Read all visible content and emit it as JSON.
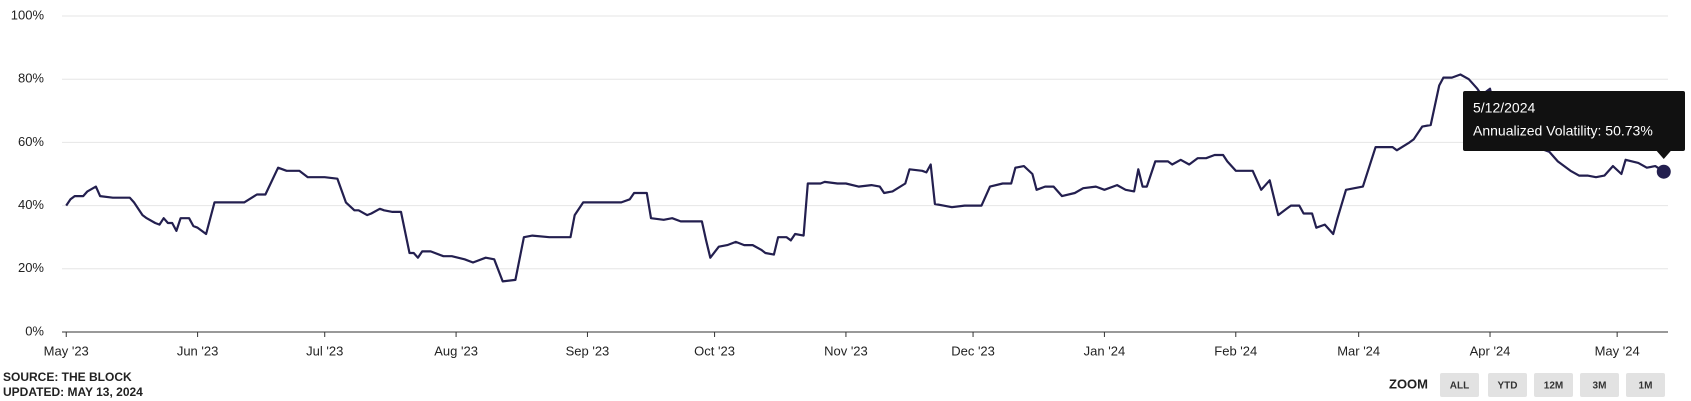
{
  "chart_data": {
    "type": "line",
    "x": [
      "5/1/2023",
      "5/2/2023",
      "5/3/2023",
      "5/5/2023",
      "5/6/2023",
      "5/8/2023",
      "5/9/2023",
      "5/12/2023",
      "5/14/2023",
      "5/16/2023",
      "5/17/2023",
      "5/19/2023",
      "5/20/2023",
      "5/22/2023",
      "5/23/2023",
      "5/24/2023",
      "5/25/2023",
      "5/26/2023",
      "5/27/2023",
      "5/28/2023",
      "5/30/2023",
      "5/31/2023",
      "6/1/2023",
      "6/3/2023",
      "6/5/2023",
      "6/8/2023",
      "6/12/2023",
      "6/15/2023",
      "6/17/2023",
      "6/20/2023",
      "6/22/2023",
      "6/25/2023",
      "6/27/2023",
      "7/1/2023",
      "7/4/2023",
      "7/6/2023",
      "7/8/2023",
      "7/9/2023",
      "7/11/2023",
      "7/12/2023",
      "7/14/2023",
      "7/15/2023",
      "7/17/2023",
      "7/19/2023",
      "7/21/2023",
      "7/22/2023",
      "7/23/2023",
      "7/24/2023",
      "7/26/2023",
      "7/29/2023",
      "7/31/2023",
      "8/3/2023",
      "8/5/2023",
      "8/8/2023",
      "8/10/2023",
      "8/12/2023",
      "8/15/2023",
      "8/17/2023",
      "8/19/2023",
      "8/23/2023",
      "8/28/2023",
      "8/29/2023",
      "8/31/2023",
      "9/5/2023",
      "9/9/2023",
      "9/11/2023",
      "9/12/2023",
      "9/15/2023",
      "9/16/2023",
      "9/19/2023",
      "9/21/2023",
      "9/23/2023",
      "9/26/2023",
      "9/28/2023",
      "9/29/2023",
      "9/30/2023",
      "10/2/2023",
      "10/4/2023",
      "10/6/2023",
      "10/8/2023",
      "10/10/2023",
      "10/12/2023",
      "10/13/2023",
      "10/15/2023",
      "10/16/2023",
      "10/18/2023",
      "10/19/2023",
      "10/20/2023",
      "10/22/2023",
      "10/23/2023",
      "10/26/2023",
      "10/27/2023",
      "10/30/2023",
      "11/1/2023",
      "11/4/2023",
      "11/7/2023",
      "11/9/2023",
      "11/10/2023",
      "11/12/2023",
      "11/15/2023",
      "11/16/2023",
      "11/19/2023",
      "11/20/2023",
      "11/21/2023",
      "11/22/2023",
      "11/24/2023",
      "11/26/2023",
      "11/29/2023",
      "12/1/2023",
      "12/3/2023",
      "12/5/2023",
      "12/8/2023",
      "12/10/2023",
      "12/11/2023",
      "12/13/2023",
      "12/15/2023",
      "12/16/2023",
      "12/18/2023",
      "12/20/2023",
      "12/22/2023",
      "12/25/2023",
      "12/27/2023",
      "12/30/2023",
      "1/1/2024",
      "1/4/2024",
      "1/6/2024",
      "1/8/2024",
      "1/9/2024",
      "1/10/2024",
      "1/11/2024",
      "1/13/2024",
      "1/16/2024",
      "1/17/2024",
      "1/19/2024",
      "1/21/2024",
      "1/23/2024",
      "1/25/2024",
      "1/27/2024",
      "1/29/2024",
      "1/30/2024",
      "2/1/2024",
      "2/5/2024",
      "2/7/2024",
      "2/9/2024",
      "2/11/2024",
      "2/13/2024",
      "2/14/2024",
      "2/16/2024",
      "2/17/2024",
      "2/19/2024",
      "2/20/2024",
      "2/22/2024",
      "2/24/2024",
      "2/25/2024",
      "2/27/2024",
      "2/29/2024",
      "3/2/2024",
      "3/5/2024",
      "3/9/2024",
      "3/10/2024",
      "3/13/2024",
      "3/14/2024",
      "3/16/2024",
      "3/18/2024",
      "3/20/2024",
      "3/21/2024",
      "3/23/2024",
      "3/25/2024",
      "3/27/2024",
      "3/29/2024",
      "3/30/2024",
      "4/1/2024",
      "4/3/2024",
      "4/5/2024",
      "4/8/2024",
      "4/10/2024",
      "4/13/2024",
      "4/15/2024",
      "4/17/2024",
      "4/20/2024",
      "4/22/2024",
      "4/24/2024",
      "4/26/2024",
      "4/28/2024",
      "4/30/2024",
      "5/2/2024",
      "5/3/2024",
      "5/6/2024",
      "5/8/2024",
      "5/10/2024",
      "5/12/2024"
    ],
    "series": [
      {
        "name": "Annualized Volatility",
        "color": "#231f4f",
        "values": [
          40,
          42,
          43,
          43,
          44.5,
          46,
          43,
          42.5,
          42.5,
          42.5,
          41,
          37,
          36,
          34.5,
          34,
          36,
          34.5,
          34.5,
          32,
          36,
          36,
          33.5,
          33,
          31,
          41,
          41,
          41,
          43.5,
          43.5,
          52,
          51,
          51,
          49,
          49,
          48.5,
          41,
          38.5,
          38.5,
          37,
          37.5,
          39,
          38.5,
          38,
          38,
          25,
          25,
          23.5,
          25.5,
          25.5,
          24,
          24,
          23,
          22,
          23.5,
          23,
          16,
          16.5,
          30,
          30.5,
          30,
          30,
          37,
          41,
          41,
          41,
          42,
          44,
          44,
          36,
          35.5,
          36,
          35,
          35,
          35,
          29,
          23.5,
          27,
          27.5,
          28.5,
          27.5,
          27.5,
          26,
          25,
          24.5,
          30,
          30,
          29,
          31,
          30.5,
          47,
          47,
          47.5,
          47,
          47,
          46,
          46.5,
          46,
          44,
          44.5,
          47,
          51.5,
          51,
          50.5,
          53,
          40.5,
          40,
          39.5,
          40,
          40,
          40,
          46,
          47,
          47,
          52,
          52.5,
          50,
          45,
          46,
          46,
          43,
          44,
          45.5,
          46,
          45,
          46.5,
          45,
          44.5,
          51.5,
          46,
          46,
          54,
          54,
          53,
          54.5,
          53,
          55,
          55,
          56,
          56,
          54,
          51,
          51,
          45,
          48,
          37,
          39,
          40,
          40,
          37.5,
          37.5,
          33,
          34,
          31,
          36,
          45,
          45.5,
          46,
          58.5,
          58.5,
          57.5,
          60,
          61,
          65,
          65.5,
          78,
          80.5,
          80.5,
          81.5,
          80,
          77,
          75,
          77,
          65,
          62,
          62,
          60,
          58,
          57,
          54,
          51,
          49.5,
          49.5,
          49,
          49.5,
          52.5,
          50,
          54.5,
          53.5,
          52,
          52.5,
          50.73
        ]
      }
    ],
    "xlim": [
      "4/30/2023",
      "5/13/2024"
    ],
    "xticks": [
      {
        "value": "5/1/2023",
        "label": "May '23"
      },
      {
        "value": "6/1/2023",
        "label": "Jun '23"
      },
      {
        "value": "7/1/2023",
        "label": "Jul '23"
      },
      {
        "value": "8/1/2023",
        "label": "Aug '23"
      },
      {
        "value": "9/1/2023",
        "label": "Sep '23"
      },
      {
        "value": "10/1/2023",
        "label": "Oct '23"
      },
      {
        "value": "11/1/2023",
        "label": "Nov '23"
      },
      {
        "value": "12/1/2023",
        "label": "Dec '23"
      },
      {
        "value": "1/1/2024",
        "label": "Jan '24"
      },
      {
        "value": "2/1/2024",
        "label": "Feb '24"
      },
      {
        "value": "3/1/2024",
        "label": "Mar '24"
      },
      {
        "value": "4/1/2024",
        "label": "Apr '24"
      },
      {
        "value": "5/1/2024",
        "label": "May '24"
      }
    ],
    "ylim": [
      0,
      100
    ],
    "yticks": [
      {
        "value": 0,
        "label": "0%"
      },
      {
        "value": 20,
        "label": "20%"
      },
      {
        "value": 40,
        "label": "40%"
      },
      {
        "value": 60,
        "label": "60%"
      },
      {
        "value": 80,
        "label": "80%"
      },
      {
        "value": 100,
        "label": "100%"
      }
    ],
    "grid": true,
    "tooltip_text": "Annualized Volatility: 50.73%"
  },
  "footer": {
    "source": "SOURCE: THE BLOCK",
    "updated": "UPDATED: MAY 13, 2024"
  },
  "zoom": {
    "label": "ZOOM",
    "buttons": [
      "ALL",
      "YTD",
      "12M",
      "3M",
      "1M"
    ]
  }
}
